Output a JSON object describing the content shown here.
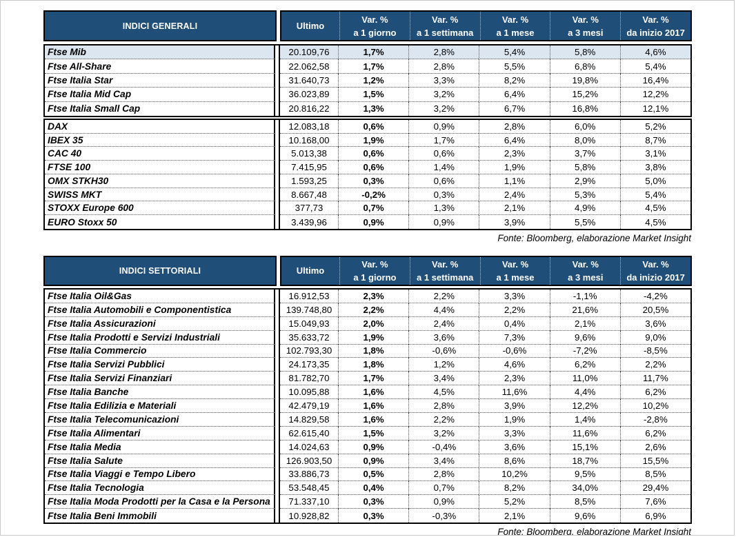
{
  "styles": {
    "header_bg": "#1f4e79",
    "header_text": "#ffffff",
    "highlight_row_bg": "#dce6f1",
    "border_color": "#000000"
  },
  "tables": [
    {
      "title": "INDICI GENERALI",
      "col_ultimo": "Ultimo",
      "var_columns": [
        {
          "line1": "Var. %",
          "line2": "a 1 giorno"
        },
        {
          "line1": "Var. %",
          "line2": "a 1 settimana"
        },
        {
          "line1": "Var. %",
          "line2": "a 1 mese"
        },
        {
          "line1": "Var. %",
          "line2": "a 3 mesi"
        },
        {
          "line1": "Var. %",
          "line2": "da inizio 2017"
        }
      ],
      "source": "Fonte: Bloomberg, elaborazione Market Insight",
      "groups": [
        {
          "rows": [
            {
              "name": "Ftse Mib",
              "highlight": true,
              "values": [
                "20.109,76",
                "1,7%",
                "2,8%",
                "5,4%",
                "5,8%",
                "4,6%"
              ]
            },
            {
              "name": "Ftse All-Share",
              "highlight": false,
              "values": [
                "22.062,58",
                "1,7%",
                "2,8%",
                "5,5%",
                "6,8%",
                "5,4%"
              ]
            },
            {
              "name": "Ftse Italia Star",
              "highlight": false,
              "values": [
                "31.640,73",
                "1,2%",
                "3,3%",
                "8,2%",
                "19,8%",
                "16,4%"
              ]
            },
            {
              "name": "Ftse Italia Mid Cap",
              "highlight": false,
              "values": [
                "36.023,89",
                "1,5%",
                "3,2%",
                "6,4%",
                "15,2%",
                "12,2%"
              ]
            },
            {
              "name": "Ftse Italia Small Cap",
              "highlight": false,
              "values": [
                "20.816,22",
                "1,3%",
                "3,2%",
                "6,7%",
                "16,8%",
                "12,1%"
              ]
            }
          ]
        },
        {
          "rows": [
            {
              "name": "DAX",
              "highlight": false,
              "values": [
                "12.083,18",
                "0,6%",
                "0,9%",
                "2,8%",
                "6,0%",
                "5,2%"
              ]
            },
            {
              "name": "IBEX 35",
              "highlight": false,
              "values": [
                "10.168,00",
                "1,9%",
                "1,7%",
                "6,4%",
                "8,0%",
                "8,7%"
              ]
            },
            {
              "name": "CAC 40",
              "highlight": false,
              "values": [
                "5.013,38",
                "0,6%",
                "0,6%",
                "2,3%",
                "3,7%",
                "3,1%"
              ]
            },
            {
              "name": "FTSE 100",
              "highlight": false,
              "values": [
                "7.415,95",
                "0,6%",
                "1,4%",
                "1,9%",
                "5,8%",
                "3,8%"
              ]
            },
            {
              "name": "OMX STKH30",
              "highlight": false,
              "values": [
                "1.593,25",
                "0,3%",
                "0,6%",
                "1,1%",
                "2,9%",
                "5,0%"
              ]
            },
            {
              "name": "SWISS MKT",
              "highlight": false,
              "values": [
                "8.667,48",
                "-0,2%",
                "0,3%",
                "2,4%",
                "5,3%",
                "5,4%"
              ]
            },
            {
              "name": "STOXX Europe 600",
              "highlight": false,
              "values": [
                "377,73",
                "0,7%",
                "1,3%",
                "2,1%",
                "4,9%",
                "4,5%"
              ]
            },
            {
              "name": "EURO Stoxx 50",
              "highlight": false,
              "values": [
                "3.439,96",
                "0,9%",
                "0,9%",
                "3,9%",
                "5,5%",
                "4,5%"
              ]
            }
          ]
        }
      ]
    },
    {
      "title": "INDICI SETTORIALI",
      "col_ultimo": "Ultimo",
      "var_columns": [
        {
          "line1": "Var. %",
          "line2": "a 1 giorno"
        },
        {
          "line1": "Var. %",
          "line2": "a 1 settimana"
        },
        {
          "line1": "Var. %",
          "line2": "a 1 mese"
        },
        {
          "line1": "Var. %",
          "line2": "a 3 mesi"
        },
        {
          "line1": "Var. %",
          "line2": "da inizio 2017"
        }
      ],
      "source": "Fonte: Bloomberg, elaborazione Market Insight",
      "groups": [
        {
          "rows": [
            {
              "name": "Ftse Italia Oil&Gas",
              "highlight": false,
              "values": [
                "16.912,53",
                "2,3%",
                "2,2%",
                "3,3%",
                "-1,1%",
                "-4,2%"
              ]
            },
            {
              "name": "Ftse Italia Automobili e Componentistica",
              "highlight": false,
              "values": [
                "139.748,80",
                "2,2%",
                "4,4%",
                "2,2%",
                "21,6%",
                "20,5%"
              ]
            },
            {
              "name": "Ftse Italia Assicurazioni",
              "highlight": false,
              "values": [
                "15.049,93",
                "2,0%",
                "2,4%",
                "0,4%",
                "2,1%",
                "3,6%"
              ]
            },
            {
              "name": "Ftse Italia Prodotti e Servizi Industriali",
              "highlight": false,
              "values": [
                "35.633,72",
                "1,9%",
                "3,6%",
                "7,3%",
                "9,6%",
                "9,0%"
              ]
            },
            {
              "name": "Ftse Italia Commercio",
              "highlight": false,
              "values": [
                "102.793,30",
                "1,8%",
                "-0,6%",
                "-0,6%",
                "-7,2%",
                "-8,5%"
              ]
            },
            {
              "name": "Ftse Italia Servizi Pubblici",
              "highlight": false,
              "values": [
                "24.173,35",
                "1,8%",
                "1,2%",
                "4,6%",
                "6,2%",
                "2,2%"
              ]
            },
            {
              "name": "Ftse Italia Servizi Finanziari",
              "highlight": false,
              "values": [
                "81.782,70",
                "1,7%",
                "3,4%",
                "2,3%",
                "11,0%",
                "11,7%"
              ]
            },
            {
              "name": "Ftse Italia Banche",
              "highlight": false,
              "values": [
                "10.095,88",
                "1,6%",
                "4,5%",
                "11,6%",
                "4,4%",
                "6,2%"
              ]
            },
            {
              "name": "Ftse Italia Edilizia e Materiali",
              "highlight": false,
              "values": [
                "42.479,19",
                "1,6%",
                "2,8%",
                "3,9%",
                "12,2%",
                "10,2%"
              ]
            },
            {
              "name": "Ftse Italia Telecomunicazioni",
              "highlight": false,
              "values": [
                "14.829,58",
                "1,6%",
                "2,2%",
                "1,9%",
                "1,4%",
                "-2,8%"
              ]
            },
            {
              "name": "Ftse Italia Alimentari",
              "highlight": false,
              "values": [
                "62.615,40",
                "1,5%",
                "3,2%",
                "3,3%",
                "11,6%",
                "6,2%"
              ]
            },
            {
              "name": "Ftse Italia Media",
              "highlight": false,
              "values": [
                "14.024,63",
                "0,9%",
                "-0,4%",
                "3,6%",
                "15,1%",
                "2,6%"
              ]
            },
            {
              "name": "Ftse Italia Salute",
              "highlight": false,
              "values": [
                "126.903,50",
                "0,9%",
                "3,4%",
                "8,6%",
                "18,7%",
                "15,5%"
              ]
            },
            {
              "name": "Ftse Italia Viaggi e Tempo Libero",
              "highlight": false,
              "values": [
                "33.886,73",
                "0,5%",
                "2,8%",
                "10,2%",
                "9,5%",
                "8,5%"
              ]
            },
            {
              "name": "Ftse Italia Tecnologia",
              "highlight": false,
              "values": [
                "53.548,45",
                "0,4%",
                "0,7%",
                "8,2%",
                "34,0%",
                "29,4%"
              ]
            },
            {
              "name": "Ftse Italia Moda Prodotti per la Casa e la Persona",
              "highlight": false,
              "values": [
                "71.337,10",
                "0,3%",
                "0,9%",
                "5,2%",
                "8,5%",
                "7,6%"
              ]
            },
            {
              "name": "Ftse Italia Beni Immobili",
              "highlight": false,
              "values": [
                "10.928,82",
                "0,3%",
                "-0,3%",
                "2,1%",
                "9,6%",
                "6,9%"
              ]
            }
          ]
        }
      ]
    }
  ]
}
